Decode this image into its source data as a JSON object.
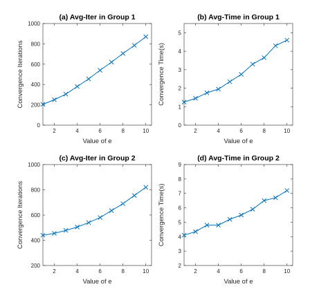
{
  "chart_data": [
    {
      "type": "line",
      "title": "(a) Avg-Iter in Group 1",
      "xlabel": "Value of e",
      "ylabel": "Convergence Iterations",
      "xlim": [
        1,
        10.5
      ],
      "ylim": [
        0,
        1000
      ],
      "xticks": [
        2,
        4,
        6,
        8,
        10
      ],
      "yticks": [
        0,
        200,
        400,
        600,
        800,
        1000
      ],
      "grid": false,
      "series": [
        {
          "x": [
            1,
            2,
            3,
            4,
            5,
            6,
            7,
            8,
            9,
            10
          ],
          "values": [
            205,
            250,
            305,
            380,
            455,
            540,
            620,
            705,
            785,
            870
          ],
          "marker": "x",
          "color": "#0072BD"
        }
      ]
    },
    {
      "type": "line",
      "title": "(b) Avg-Time in Group 1",
      "xlabel": "Value of e",
      "ylabel": "Convergence Time(s)",
      "xlim": [
        1,
        10.5
      ],
      "ylim": [
        0,
        5.5
      ],
      "xticks": [
        2,
        4,
        6,
        8,
        10
      ],
      "yticks": [
        0,
        1,
        2,
        3,
        4,
        5
      ],
      "grid": false,
      "series": [
        {
          "x": [
            1,
            2,
            3,
            4,
            5,
            6,
            7,
            8,
            9,
            10
          ],
          "values": [
            1.25,
            1.45,
            1.75,
            1.95,
            2.35,
            2.75,
            3.3,
            3.65,
            4.3,
            4.6
          ],
          "marker": "x",
          "color": "#0072BD"
        }
      ]
    },
    {
      "type": "line",
      "title": "(c) Avg-Iter in Group 2",
      "xlabel": "Value of e",
      "ylabel": "Convergence Iterations",
      "xlim": [
        1,
        10.5
      ],
      "ylim": [
        200,
        1000
      ],
      "xticks": [
        2,
        4,
        6,
        8,
        10
      ],
      "yticks": [
        200,
        400,
        600,
        800,
        1000
      ],
      "grid": false,
      "series": [
        {
          "x": [
            1,
            2,
            3,
            4,
            5,
            6,
            7,
            8,
            9,
            10
          ],
          "values": [
            440,
            455,
            478,
            505,
            540,
            580,
            635,
            690,
            755,
            820
          ],
          "marker": "x",
          "color": "#0072BD"
        }
      ]
    },
    {
      "type": "line",
      "title": "(d) Avg-Time in Group 2",
      "xlabel": "Value of e",
      "ylabel": "Convergence Time(s)",
      "xlim": [
        1,
        10.5
      ],
      "ylim": [
        2,
        9
      ],
      "xticks": [
        2,
        4,
        6,
        8,
        10
      ],
      "yticks": [
        2,
        3,
        4,
        5,
        6,
        7,
        8,
        9
      ],
      "grid": false,
      "series": [
        {
          "x": [
            1,
            2,
            3,
            4,
            5,
            6,
            7,
            8,
            9,
            10
          ],
          "values": [
            4.1,
            4.35,
            4.8,
            4.8,
            5.2,
            5.5,
            5.9,
            6.5,
            6.7,
            7.2
          ],
          "marker": "x",
          "color": "#0072BD"
        }
      ]
    }
  ]
}
